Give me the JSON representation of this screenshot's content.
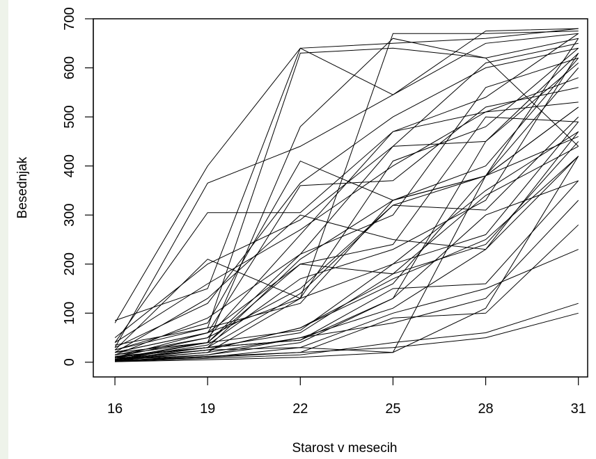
{
  "chart_data": {
    "type": "line",
    "title": "",
    "xlabel": "Starost v mesecih",
    "ylabel": "Besednjak",
    "x": [
      16,
      19,
      22,
      25,
      28,
      31
    ],
    "x_ticks": [
      "16",
      "19",
      "22",
      "25",
      "28",
      "31"
    ],
    "y_ticks": [
      "0",
      "100",
      "200",
      "300",
      "400",
      "500",
      "600",
      "700"
    ],
    "xlim": [
      15.3,
      31.3
    ],
    "ylim": [
      -30,
      700
    ],
    "legend": "none",
    "grid": false,
    "line_color": "#000000",
    "series": [
      {
        "values": [
          80,
          400,
          640,
          650,
          660,
          680
        ]
      },
      {
        "values": [
          30,
          365,
          440,
          545,
          675,
          680
        ]
      },
      {
        "values": [
          40,
          305,
          305,
          470,
          540,
          670
        ]
      },
      {
        "values": [
          25,
          210,
          130,
          670,
          670,
          675
        ]
      },
      {
        "values": [
          85,
          150,
          640,
          545,
          650,
          670
        ]
      },
      {
        "values": [
          35,
          70,
          630,
          640,
          620,
          660
        ]
      },
      {
        "values": [
          20,
          40,
          480,
          660,
          620,
          440
        ]
      },
      {
        "values": [
          30,
          120,
          365,
          500,
          600,
          640
        ]
      },
      {
        "values": [
          25,
          80,
          410,
          330,
          380,
          660
        ]
      },
      {
        "values": [
          50,
          200,
          290,
          440,
          610,
          650
        ]
      },
      {
        "values": [
          20,
          60,
          360,
          370,
          520,
          560
        ]
      },
      {
        "values": [
          15,
          40,
          220,
          440,
          450,
          630
        ]
      },
      {
        "values": [
          10,
          30,
          210,
          330,
          400,
          620
        ]
      },
      {
        "values": [
          40,
          160,
          270,
          400,
          510,
          580
        ]
      },
      {
        "values": [
          10,
          60,
          130,
          410,
          480,
          640
        ]
      },
      {
        "values": [
          5,
          30,
          140,
          320,
          380,
          520
        ]
      },
      {
        "values": [
          25,
          70,
          120,
          330,
          380,
          600
        ]
      },
      {
        "values": [
          15,
          50,
          260,
          470,
          510,
          530
        ]
      },
      {
        "values": [
          5,
          40,
          200,
          240,
          500,
          490
        ]
      },
      {
        "values": [
          20,
          130,
          300,
          250,
          230,
          470
        ]
      },
      {
        "values": [
          10,
          50,
          150,
          320,
          310,
          500
        ]
      },
      {
        "values": [
          8,
          25,
          70,
          160,
          380,
          460
        ]
      },
      {
        "values": [
          5,
          25,
          70,
          170,
          250,
          420
        ]
      },
      {
        "values": [
          10,
          30,
          60,
          180,
          240,
          450
        ]
      },
      {
        "values": [
          5,
          20,
          130,
          200,
          260,
          490
        ]
      },
      {
        "values": [
          3,
          20,
          50,
          110,
          230,
          420
        ]
      },
      {
        "values": [
          5,
          15,
          40,
          130,
          300,
          370
        ]
      },
      {
        "values": [
          12,
          30,
          45,
          150,
          160,
          370
        ]
      },
      {
        "values": [
          2,
          15,
          50,
          80,
          130,
          330
        ]
      },
      {
        "values": [
          2,
          10,
          20,
          90,
          100,
          280
        ]
      },
      {
        "values": [
          3,
          10,
          30,
          100,
          150,
          230
        ]
      },
      {
        "values": [
          1,
          8,
          15,
          40,
          60,
          120
        ]
      },
      {
        "values": [
          3,
          12,
          20,
          30,
          50,
          100
        ]
      },
      {
        "values": [
          1,
          5,
          10,
          20,
          110,
          420
        ]
      },
      {
        "values": [
          4,
          25,
          30,
          20,
          380,
          520
        ]
      },
      {
        "values": [
          6,
          35,
          170,
          230,
          330,
          630
        ]
      },
      {
        "values": [
          15,
          90,
          220,
          300,
          560,
          620
        ]
      },
      {
        "values": [
          20,
          60,
          200,
          180,
          340,
          440
        ]
      },
      {
        "values": [
          10,
          30,
          45,
          130,
          450,
          610
        ]
      },
      {
        "values": [
          8,
          40,
          65,
          200,
          350,
          470
        ]
      }
    ]
  }
}
